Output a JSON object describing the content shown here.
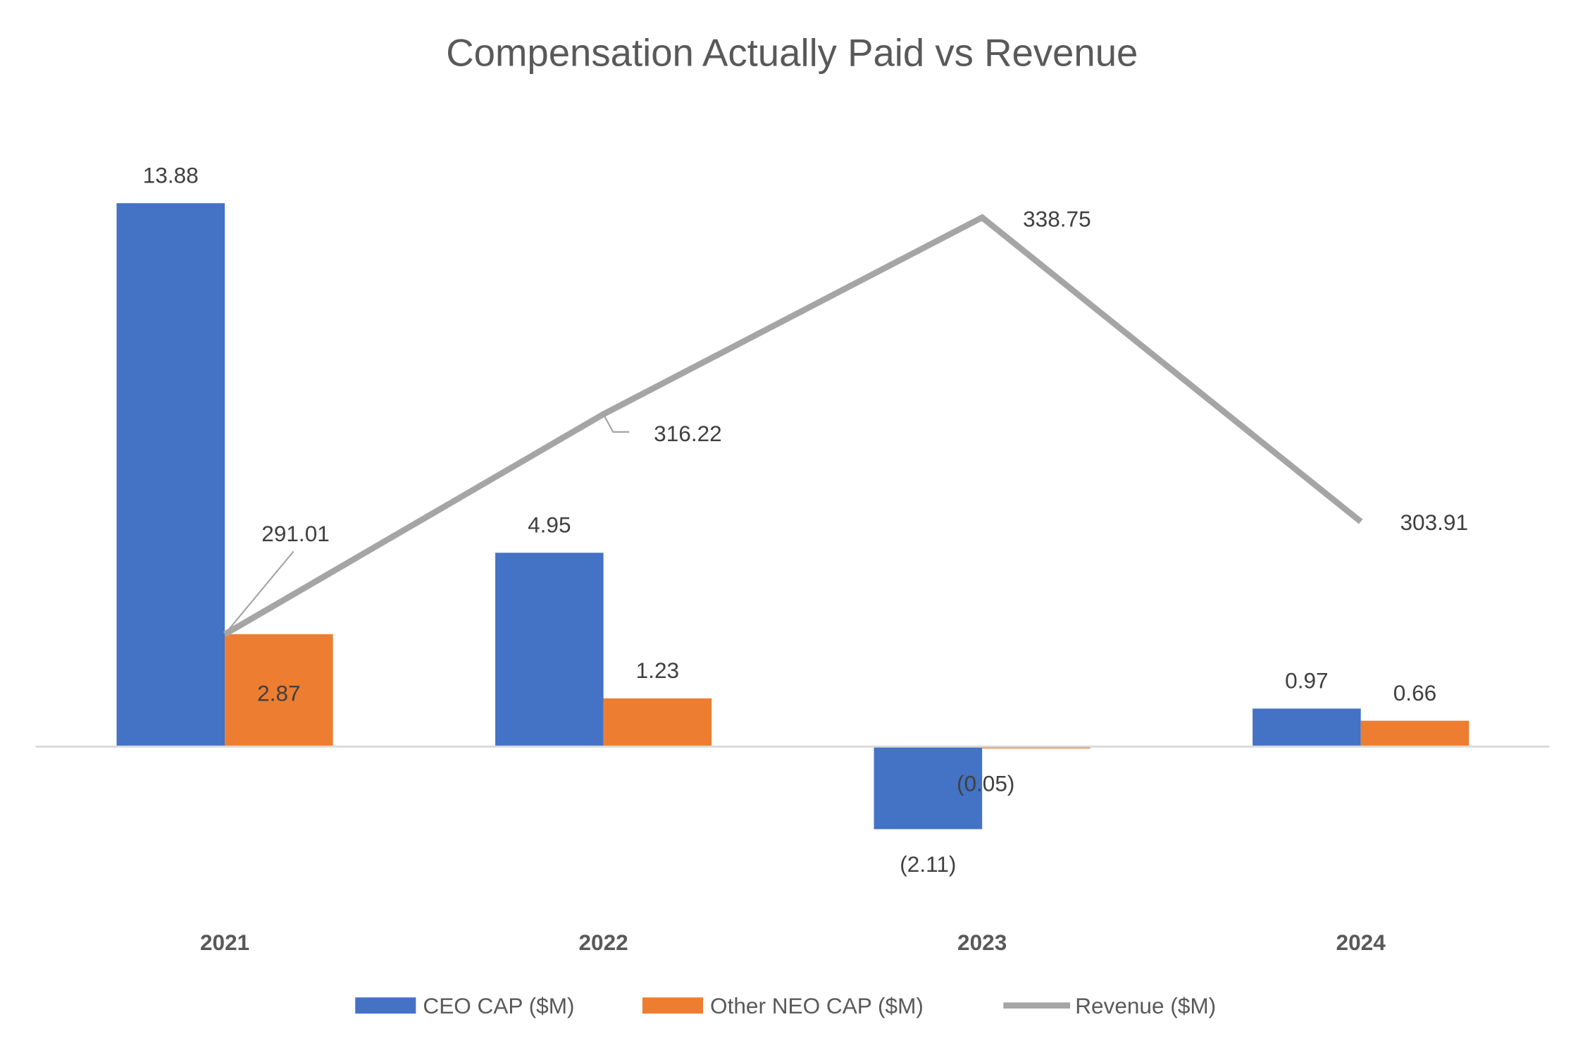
{
  "chart_data": {
    "type": "bar",
    "title": "Compensation Actually Paid vs Revenue",
    "categories": [
      "2021",
      "2022",
      "2023",
      "2024"
    ],
    "series": [
      {
        "name": "CEO CAP ($M)",
        "type": "bar",
        "axis": "primary",
        "color": "#4472C4",
        "values": [
          13.88,
          4.95,
          -2.11,
          0.97
        ],
        "labels": [
          "13.88",
          "4.95",
          "(2.11)",
          "0.97"
        ]
      },
      {
        "name": "Other NEO CAP ($M)",
        "type": "bar",
        "axis": "primary",
        "color": "#ED7D31",
        "values": [
          2.87,
          1.23,
          -0.05,
          0.66
        ],
        "labels": [
          "2.87",
          "1.23",
          "(0.05)",
          "0.66"
        ]
      },
      {
        "name": "Revenue ($M)",
        "type": "line",
        "axis": "secondary",
        "color": "#A5A5A5",
        "values": [
          291.01,
          316.22,
          338.75,
          303.91
        ],
        "labels": [
          "291.01",
          "316.22",
          "338.75",
          "303.91"
        ]
      }
    ],
    "grid": false,
    "legend": "bottom"
  }
}
